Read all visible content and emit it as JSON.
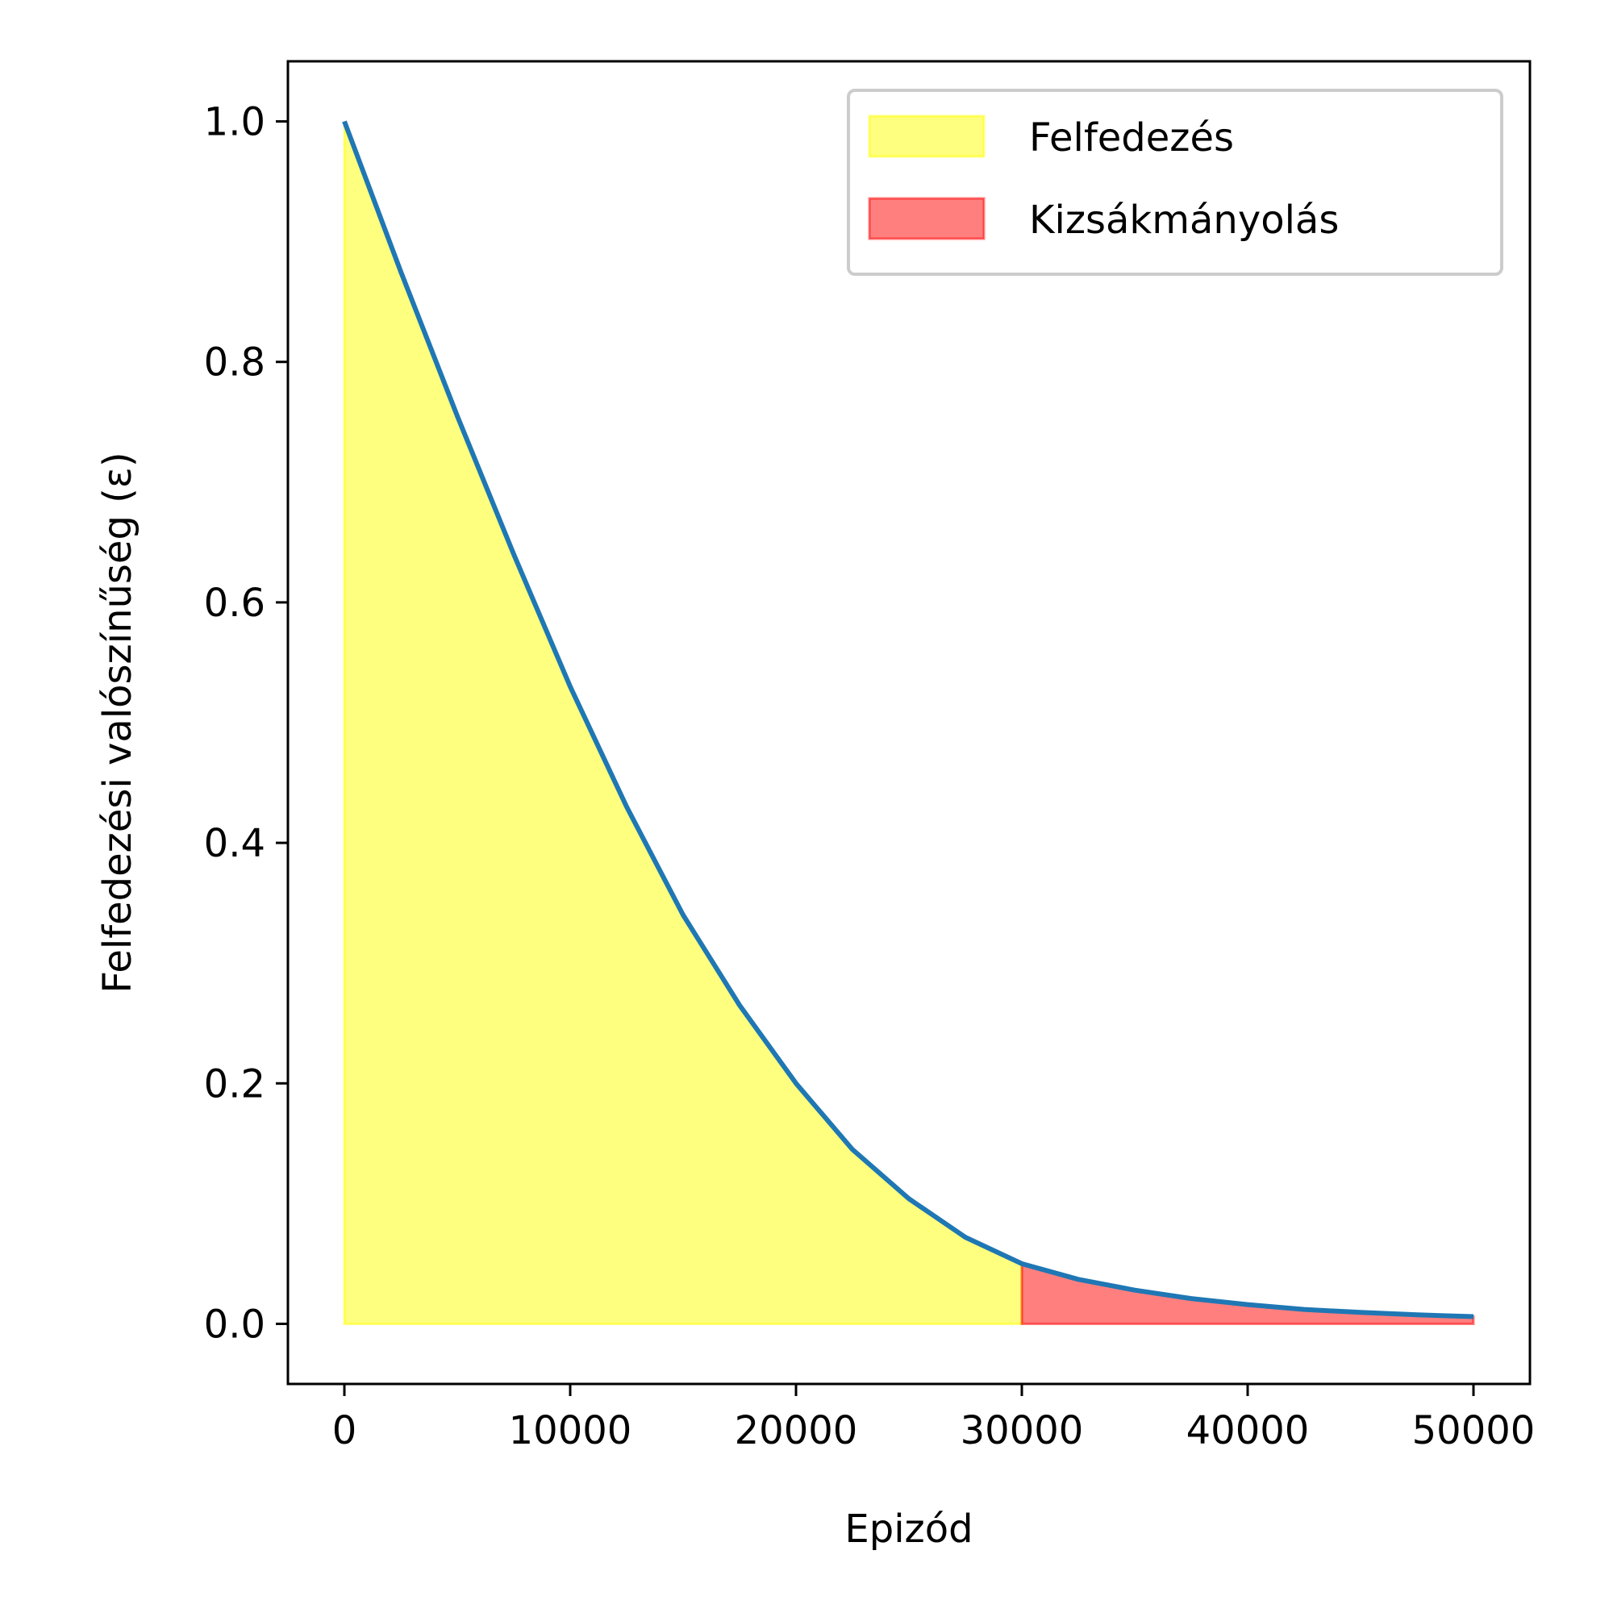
{
  "chart_data": {
    "type": "area",
    "xlabel": "Epizód",
    "ylabel": "Felfedezési valószínűség (ε)",
    "xlim": [
      -2500,
      52500
    ],
    "ylim": [
      -0.05,
      1.05
    ],
    "xticks": [
      0,
      10000,
      20000,
      30000,
      40000,
      50000
    ],
    "xtick_labels": [
      "0",
      "10000",
      "20000",
      "30000",
      "40000",
      "50000"
    ],
    "yticks": [
      0.0,
      0.2,
      0.4,
      0.6,
      0.8,
      1.0
    ],
    "ytick_labels": [
      "0.0",
      "0.2",
      "0.4",
      "0.6",
      "0.8",
      "1.0"
    ],
    "grid": false,
    "legend_position": "upper right",
    "curve": {
      "color": "#1f77b4",
      "x": [
        0,
        2500,
        5000,
        7500,
        10000,
        12500,
        15000,
        17500,
        20000,
        22500,
        25000,
        27500,
        30000,
        32500,
        35000,
        37500,
        40000,
        42500,
        45000,
        47500,
        50000
      ],
      "y": [
        1.0,
        0.875,
        0.755,
        0.64,
        0.53,
        0.43,
        0.34,
        0.265,
        0.2,
        0.145,
        0.104,
        0.072,
        0.05,
        0.037,
        0.028,
        0.021,
        0.016,
        0.012,
        0.0095,
        0.0075,
        0.006
      ]
    },
    "regions": [
      {
        "name": "Felfedezés",
        "x_range": [
          0,
          30000
        ],
        "color": "#ffff00",
        "alpha": 0.5
      },
      {
        "name": "Kizsákmányolás",
        "x_range": [
          30000,
          50000
        ],
        "color": "#ff0000",
        "alpha": 0.5
      }
    ]
  }
}
